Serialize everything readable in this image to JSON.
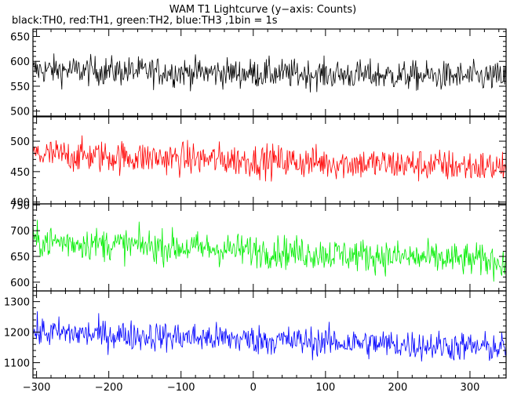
{
  "chart_data": {
    "type": "line",
    "title": "WAM T1 Lightcurve (y−axis: Counts)",
    "subtitle": "black:TH0, red:TH1, green:TH2, blue:TH3 ,1bin = 1s",
    "x_range": [
      -305,
      350
    ],
    "x_ticks": [
      -300,
      -200,
      -100,
      0,
      100,
      200,
      300
    ],
    "x_minor_step": 20,
    "grid": false,
    "series": [
      {
        "name": "TH0",
        "color": "#000000",
        "ylim": [
          490,
          665
        ],
        "y_ticks": [
          500,
          550,
          600,
          650
        ],
        "y_minor_step": 10,
        "trend_start": 583,
        "trend_end": 568,
        "noise": 24
      },
      {
        "name": "TH1",
        "color": "#ff0000",
        "ylim": [
          397,
          540
        ],
        "y_ticks": [
          400,
          450,
          500
        ],
        "y_minor_step": 10,
        "trend_start": 478,
        "trend_end": 457,
        "noise": 22
      },
      {
        "name": "TH2",
        "color": "#00ee00",
        "ylim": [
          583,
          752
        ],
        "y_ticks": [
          600,
          650,
          700,
          750
        ],
        "y_minor_step": 10,
        "trend_start": 680,
        "trend_end": 640,
        "noise": 26
      },
      {
        "name": "TH3",
        "color": "#0000ff",
        "ylim": [
          1050,
          1335
        ],
        "y_ticks": [
          1100,
          1200,
          1300
        ],
        "y_minor_step": 20,
        "trend_start": 1200,
        "trend_end": 1148,
        "noise": 40
      }
    ]
  }
}
